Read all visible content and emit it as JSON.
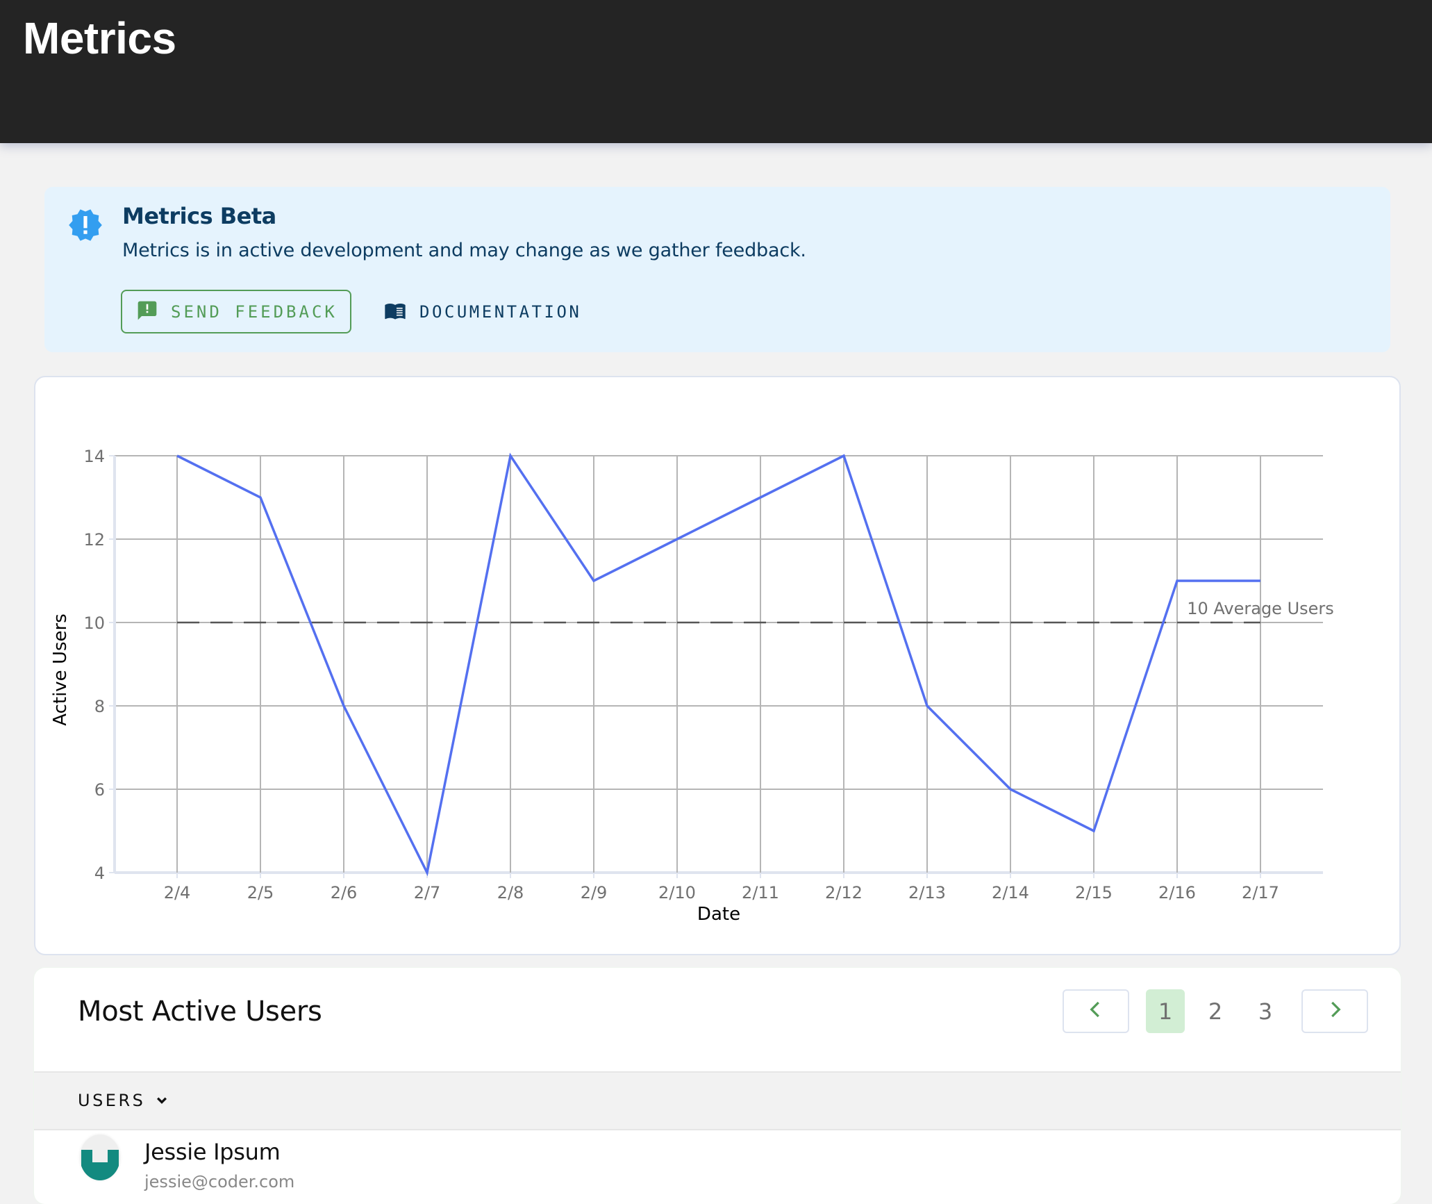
{
  "header": {
    "title": "Metrics"
  },
  "banner": {
    "title": "Metrics Beta",
    "message": "Metrics is in active development and may change as we gather feedback.",
    "icon": "alert-decagram-icon",
    "feedback_button": {
      "label": "SEND FEEDBACK",
      "icon": "feedback-icon"
    },
    "docs_button": {
      "label": "DOCUMENTATION",
      "icon": "book-icon"
    },
    "colors": {
      "bg": "#e5f3fd",
      "text": "#0d3c61",
      "icon": "#339ef0",
      "feedback": "#539c57"
    }
  },
  "chart_data": {
    "type": "line",
    "title": "",
    "xlabel": "Date",
    "ylabel": "Active Users",
    "categories": [
      "2/4",
      "2/5",
      "2/6",
      "2/7",
      "2/8",
      "2/9",
      "2/10",
      "2/11",
      "2/12",
      "2/13",
      "2/14",
      "2/15",
      "2/16",
      "2/17"
    ],
    "series": [
      {
        "name": "Active Users",
        "color": "#5470f0",
        "values": [
          14,
          13,
          8,
          4,
          14,
          11,
          12,
          13,
          14,
          8,
          6,
          5,
          11,
          11
        ]
      }
    ],
    "yticks": [
      4,
      6,
      8,
      10,
      12,
      14
    ],
    "ylim": [
      4,
      14
    ],
    "grid": true,
    "annotations": [
      {
        "type": "hline",
        "y": 10,
        "style": "dashed",
        "label": "10 Average Users"
      }
    ]
  },
  "most_active": {
    "title": "Most Active Users",
    "pagination": {
      "pages": [
        "1",
        "2",
        "3"
      ],
      "current": "1",
      "prev_icon": "chevron-left-icon",
      "next_icon": "chevron-right-icon"
    },
    "column_header": "USERS",
    "users": [
      {
        "name": "Jessie Ipsum",
        "email": "jessie@coder.com"
      }
    ]
  }
}
